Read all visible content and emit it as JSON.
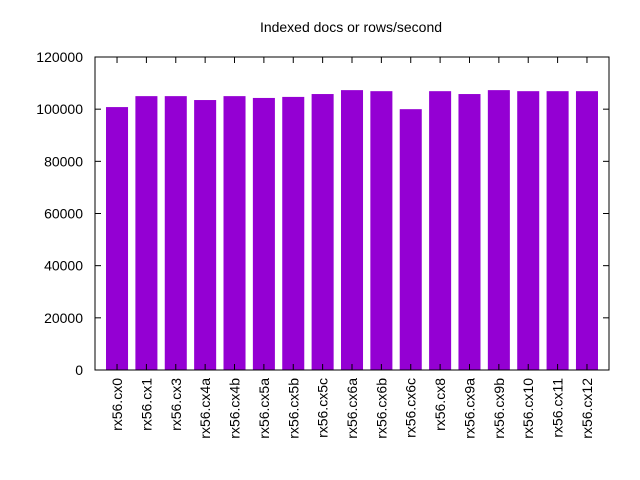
{
  "chart_data": {
    "type": "bar",
    "title": "Indexed docs or rows/second",
    "xlabel": "",
    "ylabel": "",
    "categories": [
      "rx56.cx0",
      "rx56.cx1",
      "rx56.cx3",
      "rx56.cx4a",
      "rx56.cx4b",
      "rx56.cx5a",
      "rx56.cx5b",
      "rx56.cx5c",
      "rx56.cx6a",
      "rx56.cx6b",
      "rx56.cx6c",
      "rx56.cx8",
      "rx56.cx9a",
      "rx56.cx9b",
      "rx56.cx10",
      "rx56.cx11",
      "rx56.cx12"
    ],
    "values": [
      100800,
      105000,
      105000,
      103500,
      105000,
      104300,
      104700,
      105800,
      107300,
      106900,
      100000,
      106900,
      105800,
      107300,
      106900,
      106900,
      106900
    ],
    "ylim": [
      0,
      120000
    ],
    "yticks": [
      0,
      20000,
      40000,
      60000,
      80000,
      100000,
      120000
    ],
    "bar_color": "#9400d3",
    "grid": false,
    "legend": "none"
  }
}
